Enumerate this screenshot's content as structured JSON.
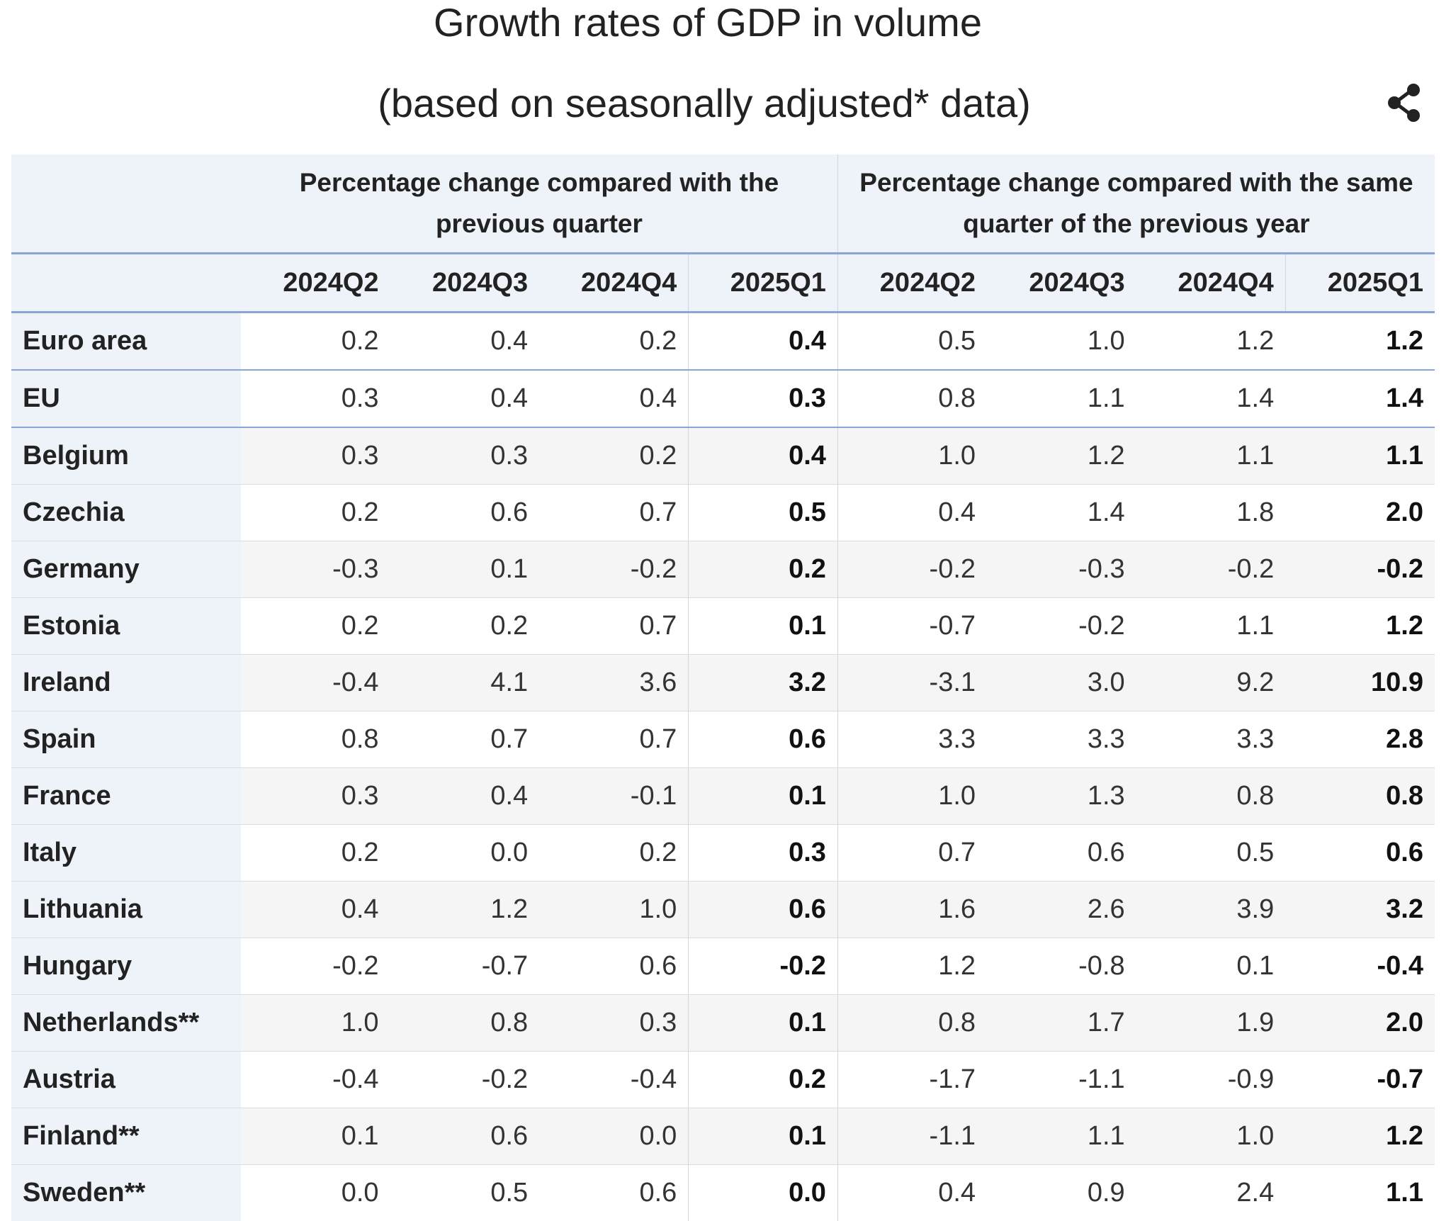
{
  "title_line1": "Growth rates of GDP in volume",
  "title_line2": "(based on seasonally adjusted* data)",
  "share_icon": "share-icon",
  "colors": {
    "header_background": "#eef3fa",
    "accent_border": "#8aa4d8",
    "row_stripe": "#f5f5f5"
  },
  "chart_data": {
    "type": "table",
    "group_headers": [
      "Percentage change compared with the previous quarter",
      "Percentage change compared with the same quarter of the previous year"
    ],
    "quarters": [
      "2024Q2",
      "2024Q3",
      "2024Q4",
      "2025Q1"
    ],
    "rows": [
      {
        "country": "Euro area",
        "values": [
          "0.2",
          "0.4",
          "0.2",
          "0.4",
          "0.5",
          "1.0",
          "1.2",
          "1.2"
        ]
      },
      {
        "country": "EU",
        "values": [
          "0.3",
          "0.4",
          "0.4",
          "0.3",
          "0.8",
          "1.1",
          "1.4",
          "1.4"
        ]
      },
      {
        "country": "Belgium",
        "values": [
          "0.3",
          "0.3",
          "0.2",
          "0.4",
          "1.0",
          "1.2",
          "1.1",
          "1.1"
        ]
      },
      {
        "country": "Czechia",
        "values": [
          "0.2",
          "0.6",
          "0.7",
          "0.5",
          "0.4",
          "1.4",
          "1.8",
          "2.0"
        ]
      },
      {
        "country": "Germany",
        "values": [
          "-0.3",
          "0.1",
          "-0.2",
          "0.2",
          "-0.2",
          "-0.3",
          "-0.2",
          "-0.2"
        ]
      },
      {
        "country": "Estonia",
        "values": [
          "0.2",
          "0.2",
          "0.7",
          "0.1",
          "-0.7",
          "-0.2",
          "1.1",
          "1.2"
        ]
      },
      {
        "country": "Ireland",
        "values": [
          "-0.4",
          "4.1",
          "3.6",
          "3.2",
          "-3.1",
          "3.0",
          "9.2",
          "10.9"
        ]
      },
      {
        "country": "Spain",
        "values": [
          "0.8",
          "0.7",
          "0.7",
          "0.6",
          "3.3",
          "3.3",
          "3.3",
          "2.8"
        ]
      },
      {
        "country": "France",
        "values": [
          "0.3",
          "0.4",
          "-0.1",
          "0.1",
          "1.0",
          "1.3",
          "0.8",
          "0.8"
        ]
      },
      {
        "country": "Italy",
        "values": [
          "0.2",
          "0.0",
          "0.2",
          "0.3",
          "0.7",
          "0.6",
          "0.5",
          "0.6"
        ]
      },
      {
        "country": "Lithuania",
        "values": [
          "0.4",
          "1.2",
          "1.0",
          "0.6",
          "1.6",
          "2.6",
          "3.9",
          "3.2"
        ]
      },
      {
        "country": "Hungary",
        "values": [
          "-0.2",
          "-0.7",
          "0.6",
          "-0.2",
          "1.2",
          "-0.8",
          "0.1",
          "-0.4"
        ]
      },
      {
        "country": "Netherlands**",
        "values": [
          "1.0",
          "0.8",
          "0.3",
          "0.1",
          "0.8",
          "1.7",
          "1.9",
          "2.0"
        ]
      },
      {
        "country": "Austria",
        "values": [
          "-0.4",
          "-0.2",
          "-0.4",
          "0.2",
          "-1.7",
          "-1.1",
          "-0.9",
          "-0.7"
        ]
      },
      {
        "country": "Finland**",
        "values": [
          "0.1",
          "0.6",
          "0.0",
          "0.1",
          "-1.1",
          "1.1",
          "1.0",
          "1.2"
        ]
      },
      {
        "country": "Sweden**",
        "values": [
          "0.0",
          "0.5",
          "0.6",
          "0.0",
          "0.4",
          "0.9",
          "2.4",
          "1.1"
        ]
      }
    ]
  }
}
